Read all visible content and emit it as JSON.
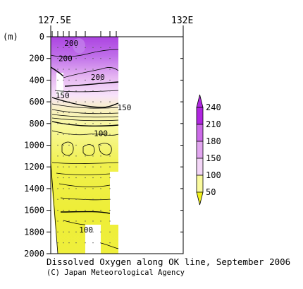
{
  "chart_data": {
    "type": "contour",
    "title": "Dissolved Oxygen along OK line, September 2006",
    "credit": "(C) Japan Meteorological Agency",
    "x_ticks": [
      "127.5E",
      "132E"
    ],
    "x_range": [
      127.5,
      132
    ],
    "y_unit": "(m)",
    "y_range": [
      0,
      2000
    ],
    "y_ticks": [
      "0",
      "200",
      "400",
      "600",
      "800",
      "1000",
      "1200",
      "1400",
      "1600",
      "1800",
      "2000"
    ],
    "contour_labels": [
      {
        "text": "200",
        "x": 128.2,
        "y": 60
      },
      {
        "text": "200",
        "x": 128.0,
        "y": 200
      },
      {
        "text": "200",
        "x": 129.1,
        "y": 370
      },
      {
        "text": "150",
        "x": 127.9,
        "y": 540
      },
      {
        "text": "150",
        "x": 130.0,
        "y": 650
      },
      {
        "text": "100",
        "x": 129.2,
        "y": 890
      },
      {
        "text": "100",
        "x": 128.7,
        "y": 1780
      }
    ],
    "colorbar": {
      "labels": [
        "240",
        "210",
        "180",
        "150",
        "100",
        "50"
      ],
      "colors": [
        "#b026e0",
        "#cc6be8",
        "#e2a6f0",
        "#f3d6f7",
        "#fafa9e",
        "#f2f21a"
      ]
    }
  }
}
